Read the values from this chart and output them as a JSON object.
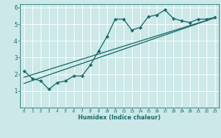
{
  "xlabel": "Humidex (Indice chaleur)",
  "bg_color": "#cce8e8",
  "grid_color": "#ffffff",
  "line_color": "#1a6b6b",
  "xlim": [
    -0.5,
    23.5
  ],
  "ylim": [
    0,
    6.2
  ],
  "xticks": [
    0,
    1,
    2,
    3,
    4,
    5,
    6,
    7,
    8,
    9,
    10,
    11,
    12,
    13,
    14,
    15,
    16,
    17,
    18,
    19,
    20,
    21,
    22,
    23
  ],
  "yticks": [
    1,
    2,
    3,
    4,
    5,
    6
  ],
  "data_x": [
    0,
    1,
    2,
    3,
    4,
    5,
    6,
    7,
    8,
    9,
    10,
    11,
    12,
    13,
    14,
    15,
    16,
    17,
    18,
    19,
    20,
    21,
    22,
    23
  ],
  "data_y": [
    2.2,
    1.75,
    1.6,
    1.1,
    1.5,
    1.6,
    1.9,
    1.9,
    2.55,
    3.4,
    4.25,
    5.3,
    5.3,
    4.65,
    4.8,
    5.45,
    5.55,
    5.85,
    5.35,
    5.2,
    5.1,
    5.3,
    5.3,
    5.4
  ],
  "line1_x": [
    0,
    23
  ],
  "line1_y": [
    1.45,
    5.38
  ],
  "line2_x": [
    0,
    23
  ],
  "line2_y": [
    1.82,
    5.38
  ],
  "marker": "D",
  "marker_size": 2.5,
  "line_width": 1.0
}
